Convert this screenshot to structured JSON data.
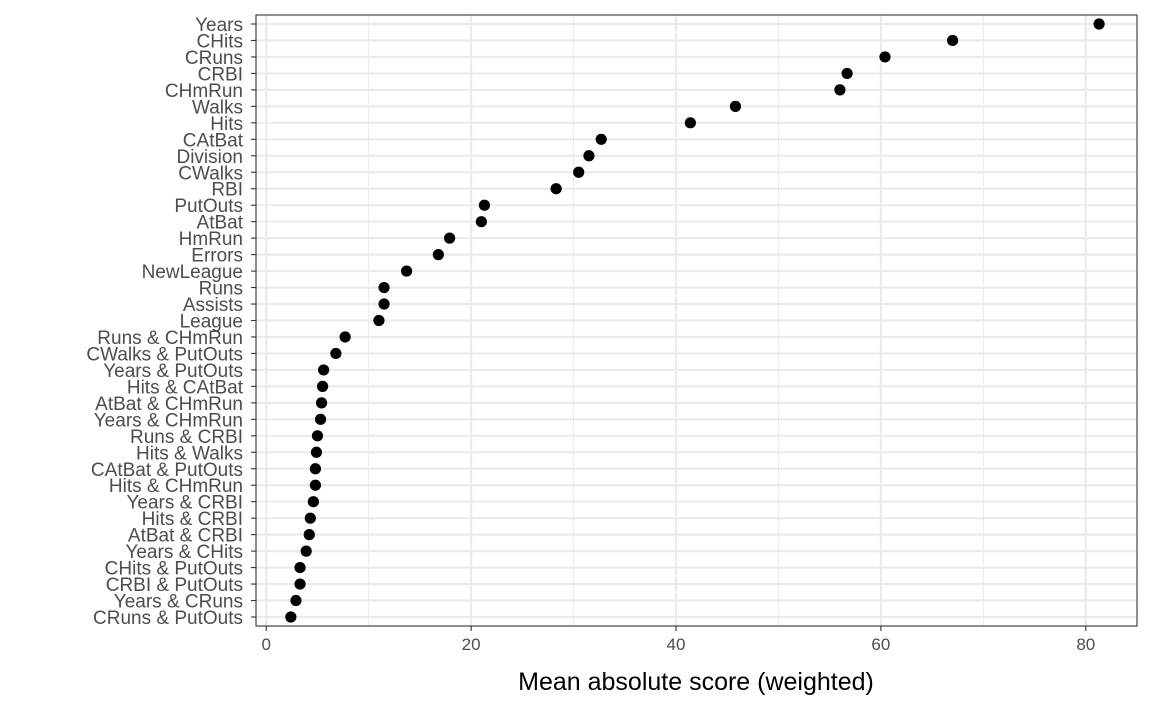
{
  "chart_data": {
    "type": "scatter",
    "title": "",
    "xlabel": "Mean absolute score (weighted)",
    "ylabel": "",
    "xlim": [
      -1,
      85
    ],
    "xticks": [
      0,
      20,
      40,
      60,
      80
    ],
    "xtick_labels": [
      "0",
      "20",
      "40",
      "60",
      "80"
    ],
    "grid": true,
    "legend": "none",
    "point_color": "#000000",
    "grid_color": "#ebebeb",
    "panel_border_color": "#333333",
    "categories": [
      "Years",
      "CHits",
      "CRuns",
      "CRBI",
      "CHmRun",
      "Walks",
      "Hits",
      "CAtBat",
      "Division",
      "CWalks",
      "RBI",
      "PutOuts",
      "AtBat",
      "HmRun",
      "Errors",
      "NewLeague",
      "Runs",
      "Assists",
      "League",
      "Runs & CHmRun",
      "CWalks & PutOuts",
      "Years & PutOuts",
      "Hits & CAtBat",
      "AtBat & CHmRun",
      "Years & CHmRun",
      "Runs & CRBI",
      "Hits & Walks",
      "CAtBat & PutOuts",
      "Hits & CHmRun",
      "Years & CRBI",
      "Hits & CRBI",
      "AtBat & CRBI",
      "Years & CHits",
      "CHits & PutOuts",
      "CRBI & PutOuts",
      "Years & CRuns",
      "CRuns & PutOuts"
    ],
    "values": [
      81.3,
      67.0,
      60.4,
      56.7,
      56.0,
      45.8,
      41.4,
      32.7,
      31.5,
      30.5,
      28.3,
      21.3,
      21.0,
      17.9,
      16.8,
      13.7,
      11.5,
      11.5,
      11.0,
      7.7,
      6.8,
      5.6,
      5.5,
      5.4,
      5.3,
      5.0,
      4.9,
      4.8,
      4.8,
      4.6,
      4.3,
      4.2,
      3.9,
      3.3,
      3.3,
      2.9,
      2.4
    ]
  }
}
